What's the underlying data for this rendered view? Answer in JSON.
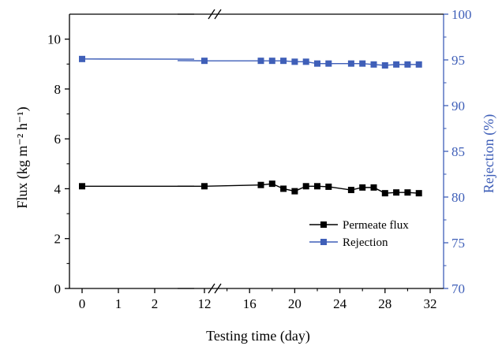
{
  "colors": {
    "flux": "#000000",
    "rejection": "#3f5fb8",
    "axis": "#000000",
    "right_axis": "#3f5fb8"
  },
  "chart_data": {
    "type": "line",
    "xlabel": "Testing time (day)",
    "ylabel_left": "Flux (kg m⁻² h⁻¹)",
    "ylabel_right": "Rejection (%)",
    "x_axis_break": {
      "after": 3,
      "before": 12
    },
    "x_ticks": [
      0,
      1,
      2,
      12,
      16,
      20,
      24,
      28,
      32
    ],
    "x_tick_labels": [
      "0",
      "1",
      "2",
      "12",
      "16",
      "20",
      "24",
      "28",
      "32"
    ],
    "ylim_left": [
      0,
      11
    ],
    "ylim_right": [
      70,
      100
    ],
    "y_ticks_left": [
      0,
      2,
      4,
      6,
      8,
      10
    ],
    "y_tick_labels_left": [
      "0",
      "2",
      "4",
      "6",
      "8",
      "10"
    ],
    "y_ticks_right": [
      70,
      75,
      80,
      85,
      90,
      95,
      100
    ],
    "y_tick_labels_right": [
      "70",
      "75",
      "80",
      "85",
      "90",
      "95",
      "100"
    ],
    "legend_position": "lower-right",
    "series": [
      {
        "name": "Permeate flux",
        "axis": "left",
        "marker": "square",
        "x": [
          0,
          12,
          17,
          18,
          19,
          20,
          21,
          22,
          23,
          25,
          26,
          27,
          28,
          29,
          30,
          31
        ],
        "y": [
          4.1,
          4.1,
          4.15,
          4.2,
          4.0,
          3.9,
          4.1,
          4.1,
          4.08,
          3.95,
          4.05,
          4.05,
          3.82,
          3.85,
          3.85,
          3.82
        ]
      },
      {
        "name": "Rejection",
        "axis": "right",
        "marker": "square",
        "x": [
          0,
          12,
          17,
          18,
          19,
          20,
          21,
          22,
          23,
          25,
          26,
          27,
          28,
          29,
          30,
          31
        ],
        "y": [
          95.1,
          94.9,
          94.9,
          94.9,
          94.9,
          94.8,
          94.8,
          94.6,
          94.6,
          94.6,
          94.6,
          94.5,
          94.4,
          94.5,
          94.5,
          94.5
        ]
      }
    ]
  }
}
